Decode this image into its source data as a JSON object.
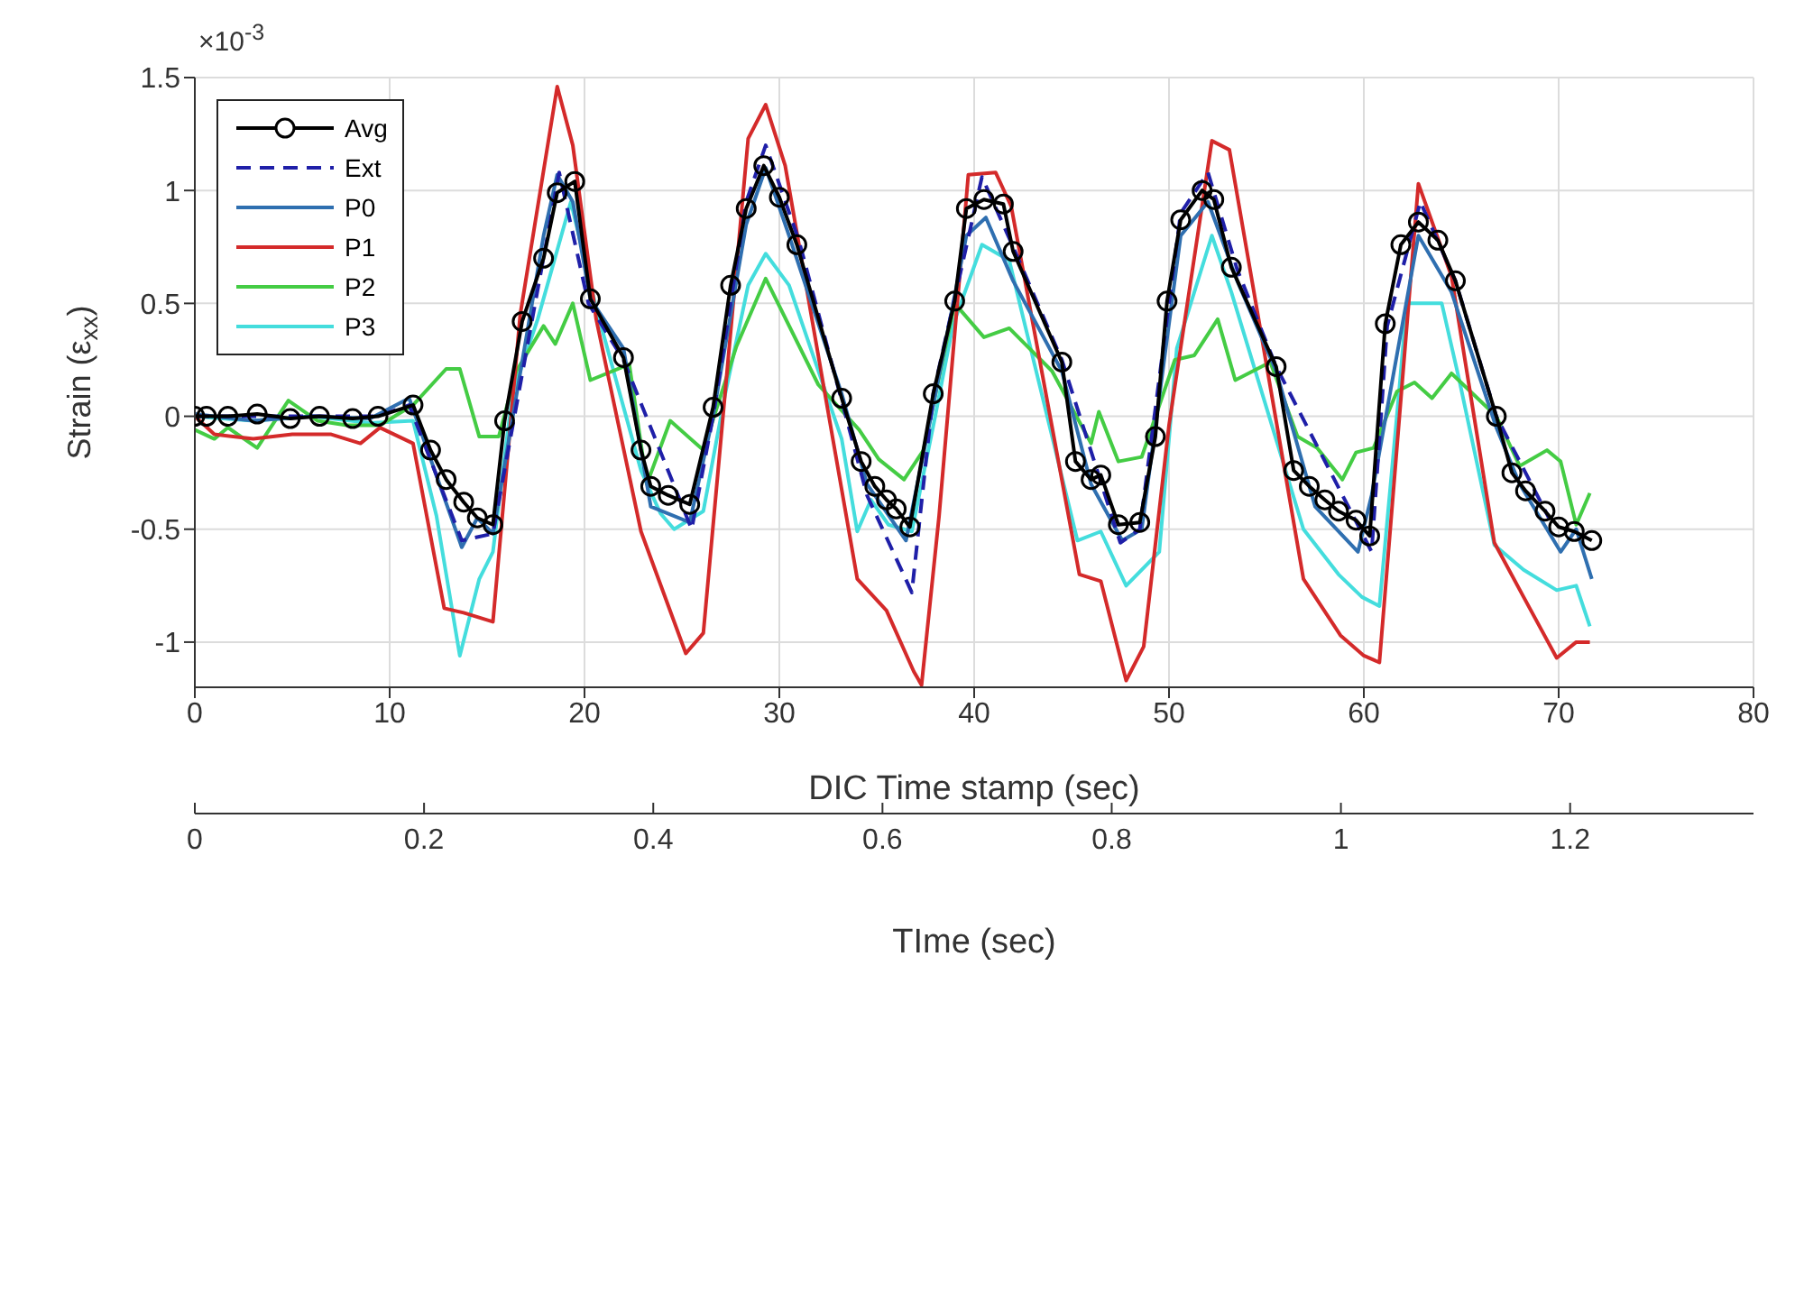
{
  "chart_data": {
    "type": "line",
    "xlabel": "DIC Time stamp (sec)",
    "x2label": "TIme (sec)",
    "ylabel": "Strain (ε$_{xx}$)",
    "annotations": [
      "×10$^{-3}$"
    ],
    "xlim": [
      0,
      80
    ],
    "xticks": [
      0,
      10,
      20,
      30,
      40,
      50,
      60,
      70,
      80
    ],
    "x2lim": [
      0,
      1.36
    ],
    "x2ticks": [
      0,
      0.2,
      0.4,
      0.6,
      0.8,
      1,
      1.2
    ],
    "ylim": [
      -1.2,
      1.5
    ],
    "yticks": [
      -1,
      -0.5,
      0,
      0.5,
      1,
      1.5
    ],
    "grid": true,
    "legend": "top left",
    "series": [
      {
        "name": "Avg",
        "color": "#000000",
        "marker": "circle",
        "line_style": "solid",
        "x": [
          0,
          0.6,
          1.7,
          3.2,
          4.9,
          6.4,
          8.1,
          9.4,
          11.2,
          12.1,
          12.9,
          13.8,
          14.5,
          15.3,
          15.9,
          16.8,
          17.9,
          18.6,
          19.5,
          20.3,
          22.0,
          22.9,
          23.4,
          24.3,
          25.4,
          26.6,
          27.5,
          28.3,
          29.2,
          30.0,
          30.9,
          33.2,
          34.2,
          34.9,
          35.5,
          36.0,
          36.7,
          37.9,
          39.0,
          39.6,
          40.5,
          41.5,
          42.0,
          44.5,
          45.2,
          46.0,
          46.5,
          47.4,
          48.5,
          49.3,
          49.9,
          50.6,
          51.7,
          52.3,
          53.2,
          55.5,
          56.4,
          57.2,
          58.0,
          58.7,
          59.6,
          60.3,
          61.1,
          61.9,
          62.8,
          63.8,
          64.7,
          66.8,
          67.6,
          68.3,
          69.3,
          70.0,
          70.8,
          71.7
        ],
        "values": [
          0,
          0,
          0,
          0.01,
          -0.01,
          0,
          -0.01,
          0,
          0.05,
          -0.15,
          -0.28,
          -0.38,
          -0.45,
          -0.48,
          -0.02,
          0.42,
          0.7,
          0.99,
          1.04,
          0.52,
          0.26,
          -0.15,
          -0.31,
          -0.35,
          -0.39,
          0.04,
          0.58,
          0.92,
          1.11,
          0.97,
          0.76,
          0.08,
          -0.2,
          -0.31,
          -0.37,
          -0.41,
          -0.49,
          0.1,
          0.51,
          0.92,
          0.96,
          0.94,
          0.73,
          0.24,
          -0.2,
          -0.28,
          -0.26,
          -0.48,
          -0.47,
          -0.09,
          0.51,
          0.87,
          1.0,
          0.96,
          0.66,
          0.22,
          -0.24,
          -0.31,
          -0.37,
          -0.42,
          -0.46,
          -0.53,
          0.41,
          0.76,
          0.86,
          0.78,
          0.6,
          0,
          -0.25,
          -0.33,
          -0.42,
          -0.49,
          -0.51,
          -0.55
        ]
      },
      {
        "name": "Ext",
        "color": "#1f1fa8",
        "marker": "none",
        "line_style": "dashed",
        "x": [
          0,
          5,
          9.4,
          11,
          13.7,
          15.3,
          18.7,
          20.2,
          22,
          25.5,
          26.6,
          28.3,
          29.3,
          31,
          34.5,
          36.8,
          37.9,
          40.4,
          42,
          44.5,
          47.5,
          48.5,
          50.6,
          52,
          53.5,
          55.5,
          60.4,
          61.2,
          62.9,
          64.7,
          66.8,
          69.5
        ],
        "values": [
          0,
          0,
          0,
          0.05,
          -0.55,
          -0.52,
          1.08,
          0.5,
          0.25,
          -0.5,
          0,
          0.95,
          1.2,
          0.78,
          -0.35,
          -0.78,
          0.1,
          1.06,
          0.75,
          0.25,
          -0.56,
          -0.5,
          0.9,
          1.08,
          0.65,
          0.22,
          -0.6,
          0.4,
          0.95,
          0.6,
          0,
          -0.45
        ]
      },
      {
        "name": "P0",
        "color": "#2f6fb0",
        "marker": "none",
        "line_style": "solid",
        "x": [
          0,
          3,
          6,
          9,
          11,
          13.7,
          14.5,
          15.3,
          17.9,
          18.6,
          19.4,
          20.3,
          22,
          23.4,
          25.4,
          26.6,
          28.3,
          29.3,
          30.5,
          33.2,
          34.5,
          36.5,
          37.9,
          39.6,
          40.6,
          42,
          44.5,
          46,
          47.6,
          48.6,
          50.6,
          52,
          53.5,
          55.5,
          57.5,
          59.7,
          60.4,
          62.8,
          64.5,
          66.8,
          68,
          70.1,
          70.9,
          71.7
        ],
        "values": [
          0.01,
          -0.02,
          0,
          -0.01,
          0.08,
          -0.58,
          -0.45,
          -0.52,
          0.8,
          1.07,
          0.95,
          0.52,
          0.3,
          -0.4,
          -0.47,
          0,
          0.85,
          1.1,
          0.8,
          0.1,
          -0.3,
          -0.55,
          0.05,
          0.8,
          0.88,
          0.6,
          0.2,
          -0.3,
          -0.55,
          -0.5,
          0.8,
          0.95,
          0.6,
          0.2,
          -0.4,
          -0.6,
          -0.35,
          0.8,
          0.55,
          -0.05,
          -0.3,
          -0.6,
          -0.5,
          -0.72
        ]
      },
      {
        "name": "P1",
        "color": "#d42a2a",
        "marker": "none",
        "line_style": "solid",
        "x": [
          0,
          1,
          3,
          5,
          7,
          8.5,
          9.5,
          11.2,
          12.8,
          13.8,
          15.3,
          16.7,
          18.6,
          19.4,
          20.6,
          22.9,
          25.2,
          26.1,
          28.4,
          29.3,
          30.3,
          34.0,
          35.5,
          36.9,
          37.3,
          38.2,
          39.7,
          41.1,
          41.9,
          45.4,
          46.5,
          47.8,
          48.7,
          50.0,
          52.2,
          53.1,
          56.9,
          58.8,
          60.0,
          60.8,
          62.8,
          64.5,
          66.7,
          68.2,
          69.9,
          70.9,
          71.6
        ],
        "values": [
          0,
          -0.08,
          -0.1,
          -0.08,
          -0.08,
          -0.12,
          -0.05,
          -0.12,
          -0.85,
          -0.87,
          -0.91,
          0.45,
          1.46,
          1.2,
          0.43,
          -0.51,
          -1.05,
          -0.96,
          1.23,
          1.38,
          1.11,
          -0.72,
          -0.86,
          -1.13,
          -1.19,
          -0.44,
          1.07,
          1.08,
          0.93,
          -0.7,
          -0.73,
          -1.17,
          -1.02,
          -0.04,
          1.22,
          1.18,
          -0.72,
          -0.97,
          -1.06,
          -1.09,
          1.03,
          0.62,
          -0.56,
          -0.8,
          -1.07,
          -1.0,
          -1.0
        ]
      },
      {
        "name": "P2",
        "color": "#44cc44",
        "marker": "none",
        "line_style": "solid",
        "x": [
          0,
          1,
          1.7,
          3.2,
          4.8,
          6.3,
          7.8,
          9.5,
          11.2,
          12.9,
          13.6,
          14.6,
          15.6,
          16.5,
          17.9,
          18.5,
          19.4,
          20.3,
          22.3,
          23.2,
          24.4,
          26.1,
          27.8,
          29.3,
          32.0,
          34.1,
          35.1,
          36.4,
          37.4,
          39.0,
          40.5,
          41.8,
          44.0,
          46.0,
          46.4,
          47.4,
          48.6,
          50.3,
          51.3,
          52.5,
          53.4,
          55.2,
          56.6,
          57.6,
          58.9,
          59.6,
          60.5,
          61.7,
          62.6,
          63.5,
          64.5,
          66.8,
          68.0,
          69.4,
          70.1,
          70.9,
          71.6
        ],
        "values": [
          -0.06,
          -0.1,
          -0.05,
          -0.14,
          0.07,
          -0.02,
          -0.04,
          -0.04,
          0.05,
          0.21,
          0.21,
          -0.09,
          -0.09,
          0.2,
          0.4,
          0.32,
          0.5,
          0.16,
          0.23,
          -0.3,
          -0.02,
          -0.15,
          0.31,
          0.61,
          0.14,
          -0.06,
          -0.19,
          -0.28,
          -0.15,
          0.5,
          0.35,
          0.39,
          0.2,
          -0.12,
          0.02,
          -0.2,
          -0.18,
          0.25,
          0.27,
          0.43,
          0.16,
          0.24,
          -0.09,
          -0.14,
          -0.28,
          -0.16,
          -0.14,
          0.11,
          0.15,
          0.08,
          0.19,
          0,
          -0.22,
          -0.15,
          -0.2,
          -0.48,
          -0.34
        ]
      },
      {
        "name": "P3",
        "color": "#44dddd",
        "marker": "none",
        "line_style": "solid",
        "x": [
          0,
          3,
          6,
          9,
          11.2,
          12.4,
          13.6,
          14.6,
          15.3,
          16.3,
          17.6,
          19.3,
          20.6,
          22.9,
          23.9,
          24.6,
          26.1,
          27.2,
          28.4,
          29.3,
          30.5,
          33.2,
          34.0,
          34.7,
          35.6,
          36.8,
          38.0,
          38.9,
          40.4,
          41.8,
          45.3,
          46.5,
          47.8,
          49.5,
          50.4,
          52.2,
          53.2,
          56.9,
          58.7,
          59.9,
          60.8,
          61.8,
          62.2,
          64.0,
          64.9,
          66.7,
          68.2,
          69.9,
          70.9,
          71.6
        ],
        "values": [
          0,
          -0.02,
          0,
          -0.03,
          -0.02,
          -0.44,
          -1.06,
          -0.72,
          -0.6,
          0.1,
          0.43,
          0.95,
          0.48,
          -0.24,
          -0.43,
          -0.5,
          -0.42,
          0.09,
          0.58,
          0.72,
          0.58,
          -0.1,
          -0.51,
          -0.37,
          -0.48,
          -0.51,
          0,
          0.4,
          0.76,
          0.69,
          -0.55,
          -0.51,
          -0.75,
          -0.6,
          0.3,
          0.8,
          0.55,
          -0.5,
          -0.7,
          -0.8,
          -0.84,
          0.1,
          0.5,
          0.5,
          0.16,
          -0.57,
          -0.68,
          -0.77,
          -0.75,
          -0.93
        ]
      }
    ]
  }
}
